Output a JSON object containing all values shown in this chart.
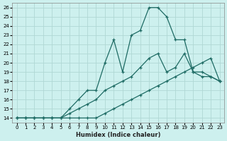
{
  "xlabel": "Humidex (Indice chaleur)",
  "background_color": "#cdf0ee",
  "grid_color": "#b0d8d4",
  "line_color": "#1e6b64",
  "xlim": [
    -0.5,
    23.5
  ],
  "ylim": [
    13.5,
    26.5
  ],
  "xticks": [
    0,
    1,
    2,
    3,
    4,
    5,
    6,
    7,
    8,
    9,
    10,
    11,
    12,
    13,
    14,
    15,
    16,
    17,
    18,
    19,
    20,
    21,
    22,
    23
  ],
  "yticks": [
    14,
    15,
    16,
    17,
    18,
    19,
    20,
    21,
    22,
    23,
    24,
    25,
    26
  ],
  "line1_x": [
    0,
    1,
    2,
    3,
    4,
    5,
    6,
    7,
    8,
    9,
    10,
    11,
    12,
    13,
    14,
    15,
    16,
    17,
    18,
    19,
    20,
    21,
    22,
    23
  ],
  "line1_y": [
    14,
    14,
    14,
    14,
    14,
    14,
    14,
    14,
    14,
    14,
    14.5,
    15,
    15.5,
    16,
    16.5,
    17,
    17.5,
    18,
    18.5,
    19,
    19.5,
    20,
    20.5,
    18.0
  ],
  "line2_x": [
    0,
    1,
    2,
    3,
    4,
    5,
    6,
    7,
    8,
    9,
    10,
    11,
    12,
    13,
    14,
    15,
    16,
    17,
    18,
    19,
    20,
    21,
    22,
    23
  ],
  "line2_y": [
    14,
    14,
    14,
    14,
    14,
    14,
    14.5,
    15,
    15.5,
    16,
    17,
    17.5,
    18,
    18.5,
    19.5,
    20.5,
    21,
    19,
    19.5,
    21,
    19,
    18.5,
    18.5,
    18
  ],
  "line3_x": [
    0,
    1,
    2,
    3,
    4,
    5,
    6,
    7,
    8,
    9,
    10,
    11,
    12,
    13,
    14,
    15,
    16,
    17,
    18,
    19,
    20,
    21,
    22,
    23
  ],
  "line3_y": [
    14,
    14,
    14,
    14,
    14,
    14,
    15,
    16,
    17,
    17,
    20,
    22.5,
    19,
    23,
    23.5,
    26,
    26,
    25,
    22.5,
    22.5,
    19,
    19,
    18.5,
    18
  ]
}
